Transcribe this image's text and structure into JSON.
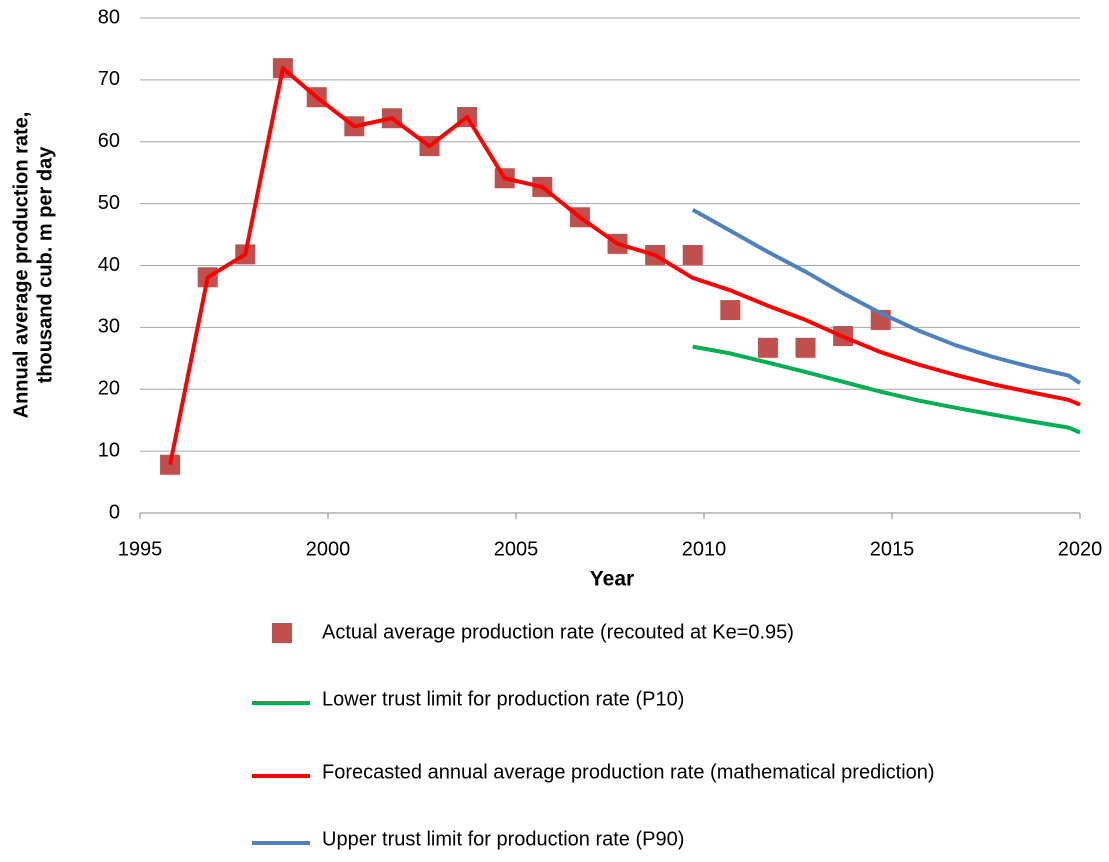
{
  "chart_data": {
    "type": "line",
    "xlabel": "Year",
    "ylabel": [
      "Annual average production rate,",
      "thousand cub. m per day"
    ],
    "xlim": [
      1995,
      2020
    ],
    "xticks": [
      1995,
      2000,
      2005,
      2010,
      2015,
      2020
    ],
    "ylim": [
      0,
      80
    ],
    "yticks": [
      0,
      10,
      20,
      30,
      40,
      50,
      60,
      70,
      80
    ],
    "grid": true,
    "series": [
      {
        "name": "Actual average production rate (recouted at Ke=0.95)",
        "color": "#c0504d",
        "style": "marker",
        "x": [
          1995.8,
          1996.8,
          1997.8,
          1998.8,
          1999.7,
          2000.7,
          2001.7,
          2002.7,
          2003.7,
          2004.7,
          2005.7,
          2006.7,
          2007.7,
          2008.7,
          2009.7,
          2010.7,
          2011.7,
          2012.7,
          2013.7,
          2014.7
        ],
        "values": [
          7.8,
          38.1,
          41.8,
          71.9,
          67.2,
          62.5,
          63.8,
          59.3,
          64,
          54.1,
          52.7,
          47.8,
          43.5,
          41.7,
          41.7,
          32.8,
          26.7,
          26.7,
          28.6,
          31.2
        ]
      },
      {
        "name": "Lower trust limit for production rate (P10)",
        "color": "#00b050",
        "style": "line",
        "x": [
          2009.7,
          2010.7,
          2011.7,
          2012.7,
          2013.7,
          2014.7,
          2015.7,
          2016.7,
          2017.7,
          2018.7,
          2019.7,
          2020
        ],
        "values": [
          26.9,
          25.8,
          24.3,
          22.8,
          21.2,
          19.6,
          18.2,
          17,
          15.9,
          14.8,
          13.8,
          13
        ]
      },
      {
        "name": "Forecasted annual average production rate (mathematical prediction)",
        "color": "#ff0000",
        "style": "line",
        "x": [
          1995.8,
          1996.8,
          1997.8,
          1998.8,
          1999.7,
          2000.7,
          2001.7,
          2002.7,
          2003.7,
          2004.7,
          2005.7,
          2006.7,
          2007.7,
          2008.7,
          2009.7,
          2010.7,
          2011.7,
          2012.7,
          2013.7,
          2014.7,
          2015.7,
          2016.7,
          2017.7,
          2018.7,
          2019.7,
          2020
        ],
        "values": [
          7.8,
          38.1,
          41.8,
          71.9,
          67.2,
          62.5,
          63.8,
          59.3,
          64,
          54.1,
          52.7,
          47.8,
          43.5,
          41.7,
          38,
          36,
          33.5,
          31.2,
          28.5,
          26,
          24,
          22.3,
          20.8,
          19.5,
          18.3,
          17.5
        ]
      },
      {
        "name": "Upper trust limit for production rate (P90)",
        "color": "#4f81bd",
        "style": "line",
        "x": [
          2009.7,
          2010.7,
          2011.7,
          2012.7,
          2013.7,
          2014.7,
          2015.7,
          2016.7,
          2017.7,
          2018.7,
          2019.7,
          2020
        ],
        "values": [
          49,
          45.6,
          42.2,
          39,
          35.5,
          32.3,
          29.5,
          27.1,
          25.2,
          23.6,
          22.2,
          21
        ]
      }
    ]
  }
}
